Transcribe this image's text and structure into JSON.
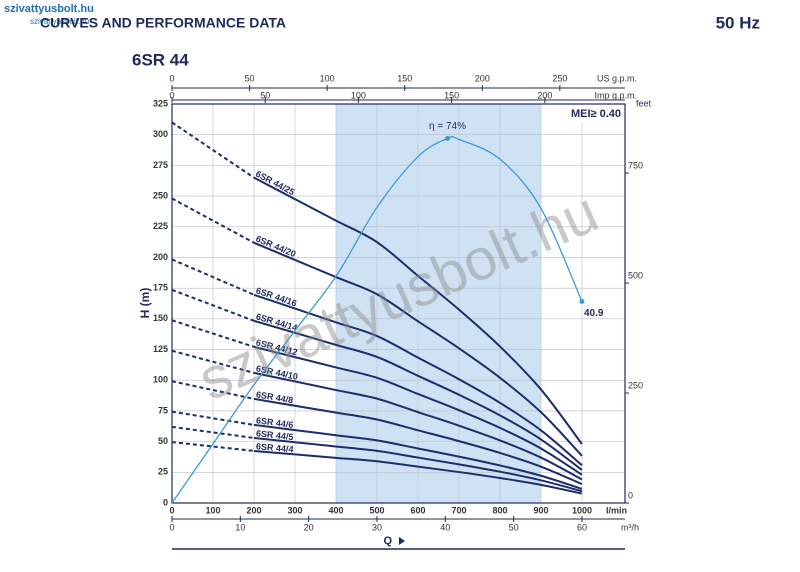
{
  "chart_data": {
    "type": "line",
    "brand": "szivattyusbolt.hu",
    "brand_small": "szivattyusbolt.hu",
    "title": "CURVES AND PERFORMANCE DATA",
    "frequency": "50 Hz",
    "model": "6SR 44",
    "mei": "MEI≥ 0.40",
    "watermark": "szivattyusbolt.hu",
    "x_label": "Q",
    "x_unit": "l/min",
    "y_label": "H (m)",
    "x": [
      0,
      100,
      200,
      300,
      400,
      500,
      600,
      700,
      800,
      900,
      1000
    ],
    "xlim": [
      0,
      1105
    ],
    "xticks": [
      0,
      100,
      200,
      300,
      400,
      500,
      600,
      700,
      800,
      900,
      1000
    ],
    "ylim": [
      0,
      325
    ],
    "yticks": [
      0,
      25,
      50,
      75,
      100,
      125,
      150,
      175,
      200,
      225,
      250,
      275,
      300,
      325
    ],
    "y2_label": "feet",
    "y2lim": [
      0,
      907
    ],
    "y2ticks": [
      0,
      250,
      500,
      750
    ],
    "top_axes": [
      {
        "label": "US g.p.m.",
        "lim": [
          0,
          292
        ],
        "ticks": [
          0,
          50,
          100,
          150,
          200,
          250
        ]
      },
      {
        "label": "Imp g.p.m.",
        "lim": [
          0,
          243
        ],
        "ticks": [
          0,
          50,
          100,
          150,
          200
        ]
      }
    ],
    "bottom_axis2": {
      "label": "m³/h",
      "lim": [
        0,
        66.3
      ],
      "ticks": [
        0,
        10,
        20,
        30,
        40,
        50,
        60
      ]
    },
    "shade": [
      400,
      900
    ],
    "shade_color": "#cfe2f4",
    "dashed_below_x": 200,
    "grid": true,
    "series": [
      {
        "name": "6SR 44/25",
        "color": "#1c2d6b",
        "values": [
          310,
          287.5,
          265,
          247.5,
          230,
          212.5,
          185,
          157.5,
          127.5,
          92.5,
          48
        ]
      },
      {
        "name": "6SR 44/20",
        "color": "#1c2d6b",
        "values": [
          248,
          230,
          212,
          198,
          184,
          170,
          148,
          126,
          102,
          74,
          38.4
        ]
      },
      {
        "name": "6SR 44/16",
        "color": "#1c2d6b",
        "values": [
          198.4,
          184,
          169.6,
          158.4,
          147.2,
          136,
          118.4,
          100.8,
          81.6,
          59.2,
          30.7
        ]
      },
      {
        "name": "6SR 44/14",
        "color": "#1c2d6b",
        "values": [
          173.6,
          161,
          148.4,
          138.6,
          128.8,
          119,
          103.6,
          88.2,
          71.4,
          51.8,
          26.9
        ]
      },
      {
        "name": "6SR 44/12",
        "color": "#1c2d6b",
        "values": [
          148.8,
          138,
          127.2,
          118.8,
          110.4,
          102,
          88.8,
          75.6,
          61.2,
          44.4,
          23
        ]
      },
      {
        "name": "6SR 44/10",
        "color": "#1c2d6b",
        "values": [
          124,
          115,
          106,
          99,
          92,
          85,
          74,
          63,
          51,
          37,
          19.2
        ]
      },
      {
        "name": "6SR 44/8",
        "color": "#1c2d6b",
        "values": [
          99.2,
          92,
          84.8,
          79.2,
          73.6,
          68,
          59.2,
          50.4,
          40.8,
          29.6,
          15.4
        ]
      },
      {
        "name": "6SR 44/6",
        "color": "#1c2d6b",
        "values": [
          74.4,
          69,
          63.6,
          59.4,
          55.2,
          51,
          44.4,
          37.8,
          30.6,
          22.2,
          11.5
        ]
      },
      {
        "name": "6SR 44/5",
        "color": "#1c2d6b",
        "values": [
          62,
          57.5,
          53,
          49.5,
          46,
          42.5,
          37,
          31.5,
          25.5,
          18.5,
          9.6
        ]
      },
      {
        "name": "6SR 44/4",
        "color": "#1c2d6b",
        "values": [
          49.6,
          46,
          42.4,
          39.6,
          36.8,
          34,
          29.6,
          25.2,
          20.4,
          14.8,
          7.7
        ]
      }
    ],
    "efficiency": {
      "color": "#3b9ad6",
      "x": [
        0,
        100,
        200,
        300,
        400,
        500,
        600,
        672,
        700,
        800,
        900,
        1000
      ],
      "values": [
        0,
        12,
        24,
        35,
        46,
        60,
        70.3,
        74,
        73.8,
        69.8,
        59.8,
        40.9
      ],
      "lim": [
        0,
        81
      ],
      "peak_label": "η = 74%"
    }
  }
}
